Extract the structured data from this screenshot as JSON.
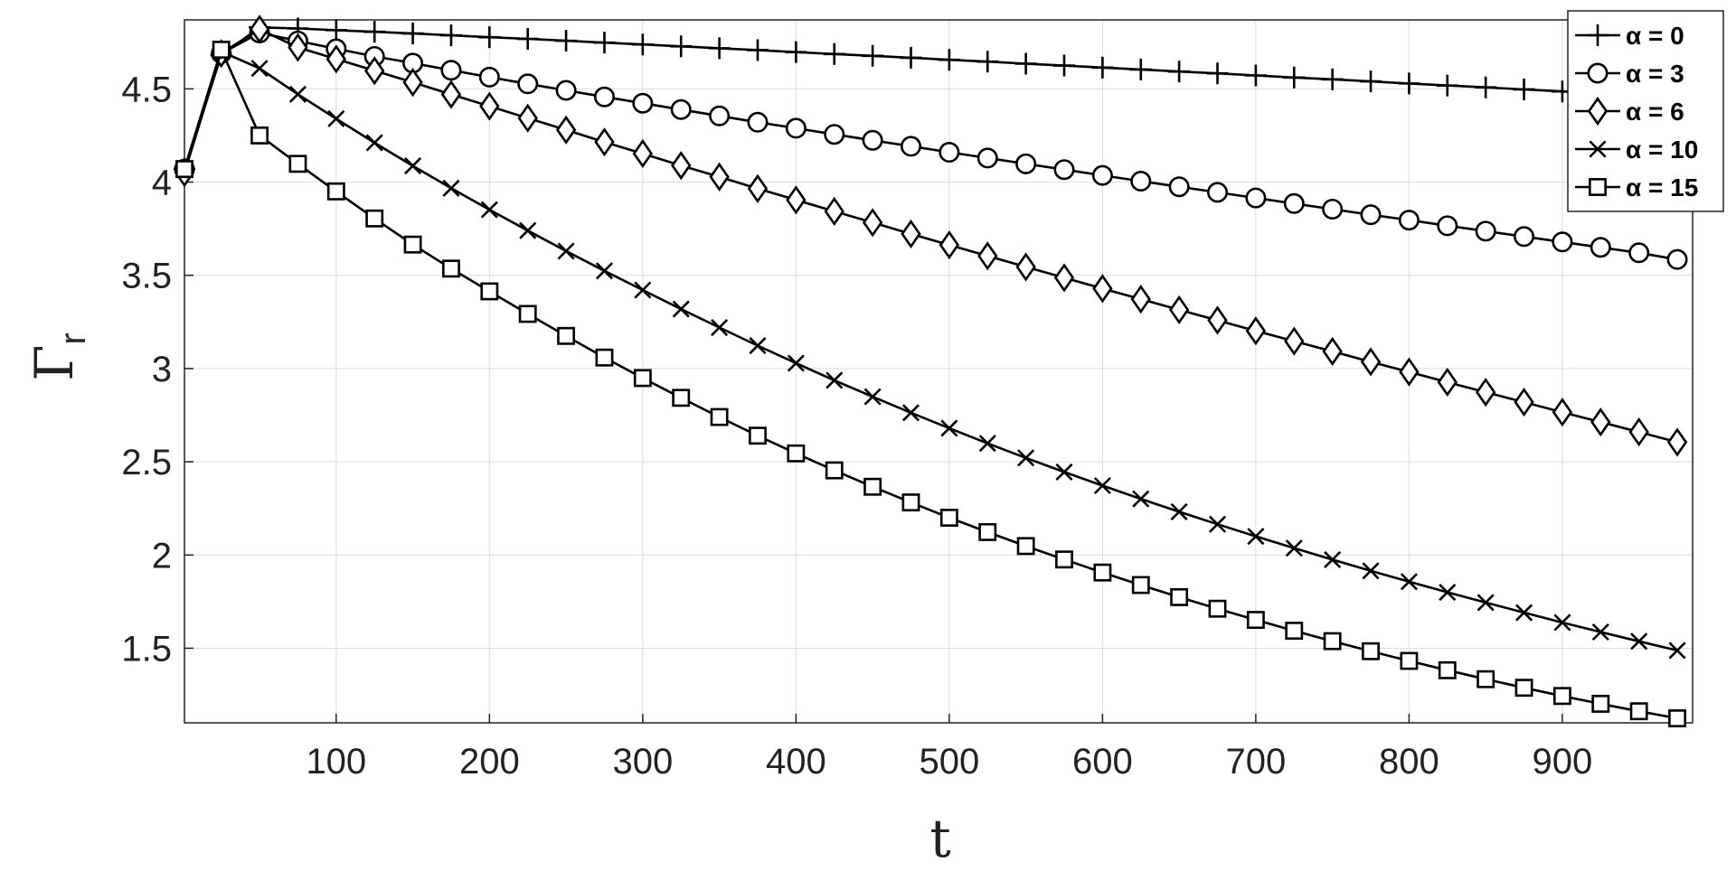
{
  "chart_data": {
    "type": "line",
    "xlabel": "t",
    "ylabel": "Γ",
    "ylabel_sub": "r",
    "xlim": [
      1,
      985
    ],
    "ylim": [
      1.1,
      4.87
    ],
    "xticks": [
      100,
      200,
      300,
      400,
      500,
      600,
      700,
      800,
      900
    ],
    "yticks": [
      1.5,
      2,
      2.5,
      3,
      3.5,
      4,
      4.5
    ],
    "ytick_labels": [
      "1.5",
      "2",
      "2.5",
      "3",
      "3.5",
      "4",
      "4.5"
    ],
    "grid": true,
    "legend_position": "top-right",
    "x": [
      1,
      25,
      50,
      75,
      100,
      125,
      150,
      175,
      200,
      225,
      250,
      275,
      300,
      325,
      350,
      375,
      400,
      425,
      450,
      475,
      500,
      525,
      550,
      575,
      600,
      625,
      650,
      675,
      700,
      725,
      750,
      775,
      800,
      825,
      850,
      875,
      900,
      925,
      950,
      975
    ],
    "series": [
      {
        "name": "α = 0",
        "marker": "plus",
        "values": [
          4.07,
          4.68,
          4.83,
          4.824,
          4.815,
          4.806,
          4.797,
          4.787,
          4.777,
          4.768,
          4.758,
          4.748,
          4.738,
          4.728,
          4.718,
          4.708,
          4.697,
          4.687,
          4.677,
          4.667,
          4.656,
          4.646,
          4.635,
          4.625,
          4.614,
          4.604,
          4.593,
          4.583,
          4.572,
          4.561,
          4.551,
          4.54,
          4.529,
          4.518,
          4.508,
          4.497,
          4.486,
          4.475,
          4.464,
          4.453
        ]
      },
      {
        "name": "α = 3",
        "marker": "circle",
        "values": [
          4.07,
          4.69,
          4.8,
          4.757,
          4.715,
          4.674,
          4.638,
          4.6,
          4.563,
          4.527,
          4.492,
          4.457,
          4.423,
          4.389,
          4.355,
          4.321,
          4.289,
          4.256,
          4.224,
          4.192,
          4.16,
          4.129,
          4.098,
          4.067,
          4.036,
          4.005,
          3.975,
          3.945,
          3.915,
          3.885,
          3.855,
          3.825,
          3.796,
          3.766,
          3.737,
          3.708,
          3.679,
          3.65,
          3.621,
          3.585
        ]
      },
      {
        "name": "α = 6",
        "marker": "diamond",
        "values": [
          4.05,
          4.69,
          4.82,
          4.722,
          4.66,
          4.597,
          4.535,
          4.47,
          4.407,
          4.343,
          4.28,
          4.215,
          4.153,
          4.089,
          4.028,
          3.965,
          3.904,
          3.843,
          3.783,
          3.722,
          3.663,
          3.604,
          3.545,
          3.487,
          3.429,
          3.372,
          3.315,
          3.259,
          3.202,
          3.147,
          3.092,
          3.036,
          2.982,
          2.927,
          2.873,
          2.82,
          2.766,
          2.713,
          2.66,
          2.605
        ]
      },
      {
        "name": "α = 10",
        "marker": "x",
        "values": [
          4.07,
          4.7,
          4.61,
          4.471,
          4.34,
          4.211,
          4.087,
          3.967,
          3.852,
          3.74,
          3.63,
          3.524,
          3.421,
          3.319,
          3.22,
          3.123,
          3.029,
          2.937,
          2.849,
          2.763,
          2.68,
          2.599,
          2.521,
          2.445,
          2.372,
          2.301,
          2.232,
          2.165,
          2.1,
          2.037,
          1.975,
          1.915,
          1.857,
          1.8,
          1.745,
          1.691,
          1.638,
          1.587,
          1.537,
          1.488
        ]
      },
      {
        "name": "α = 15",
        "marker": "square",
        "values": [
          4.07,
          4.71,
          4.25,
          4.098,
          3.95,
          3.805,
          3.665,
          3.536,
          3.414,
          3.293,
          3.175,
          3.059,
          2.949,
          2.843,
          2.74,
          2.64,
          2.545,
          2.454,
          2.366,
          2.282,
          2.2,
          2.123,
          2.048,
          1.976,
          1.906,
          1.839,
          1.774,
          1.712,
          1.652,
          1.594,
          1.538,
          1.484,
          1.432,
          1.382,
          1.334,
          1.288,
          1.244,
          1.202,
          1.162,
          1.124
        ]
      }
    ]
  }
}
